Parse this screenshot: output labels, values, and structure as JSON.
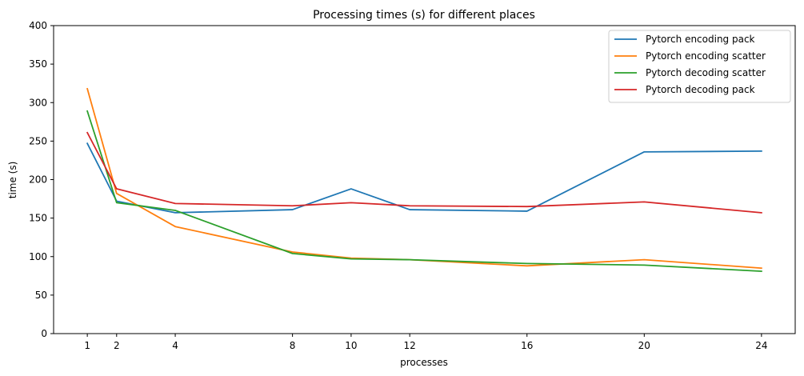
{
  "chart_data": {
    "type": "line",
    "title": "Processing times (s) for different places",
    "xlabel": "processes",
    "ylabel": "time (s)",
    "x": [
      1,
      2,
      4,
      8,
      10,
      12,
      16,
      20,
      24
    ],
    "xlim": [
      -0.15,
      25.15
    ],
    "ylim": [
      0,
      400
    ],
    "xticks": [
      1,
      2,
      4,
      8,
      10,
      12,
      16,
      20,
      24
    ],
    "yticks": [
      0,
      50,
      100,
      150,
      200,
      250,
      300,
      350,
      400
    ],
    "grid": false,
    "legend_position": "top-right",
    "series": [
      {
        "name": "Pytorch encoding pack",
        "color": "#1f77b4",
        "values": [
          247,
          172,
          157,
          161,
          188,
          161,
          159,
          236,
          237
        ]
      },
      {
        "name": "Pytorch encoding scatter",
        "color": "#ff7f0e",
        "values": [
          318,
          182,
          139,
          106,
          98,
          96,
          88,
          96,
          85
        ]
      },
      {
        "name": "Pytorch decoding scatter",
        "color": "#2ca02c",
        "values": [
          289,
          170,
          160,
          104,
          97,
          96,
          91,
          89,
          81
        ]
      },
      {
        "name": "Pytorch decoding pack",
        "color": "#d62728",
        "values": [
          261,
          188,
          169,
          166,
          170,
          166,
          165,
          171,
          157
        ]
      }
    ]
  }
}
